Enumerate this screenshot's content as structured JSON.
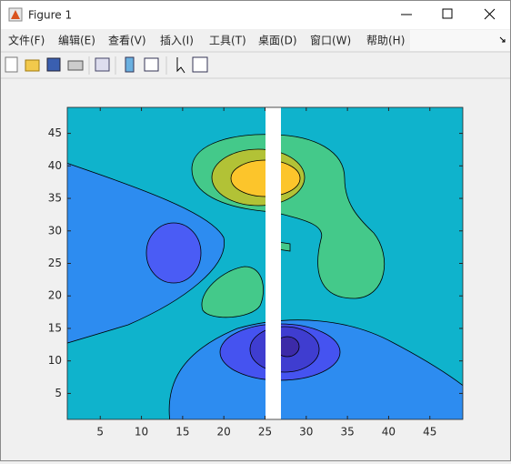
{
  "window": {
    "title": "Figure 1",
    "menu": [
      "文件(F)",
      "编辑(E)",
      "查看(V)",
      "插入(I)",
      "工具(T)",
      "桌面(D)",
      "窗口(W)",
      "帮助(H)"
    ]
  },
  "chart_data": {
    "type": "contour",
    "xlim": [
      1,
      49
    ],
    "ylim": [
      1,
      49
    ],
    "xticks": [
      5,
      10,
      15,
      20,
      25,
      30,
      35,
      40,
      45
    ],
    "yticks": [
      5,
      10,
      15,
      20,
      25,
      30,
      35,
      40,
      45
    ]
  }
}
